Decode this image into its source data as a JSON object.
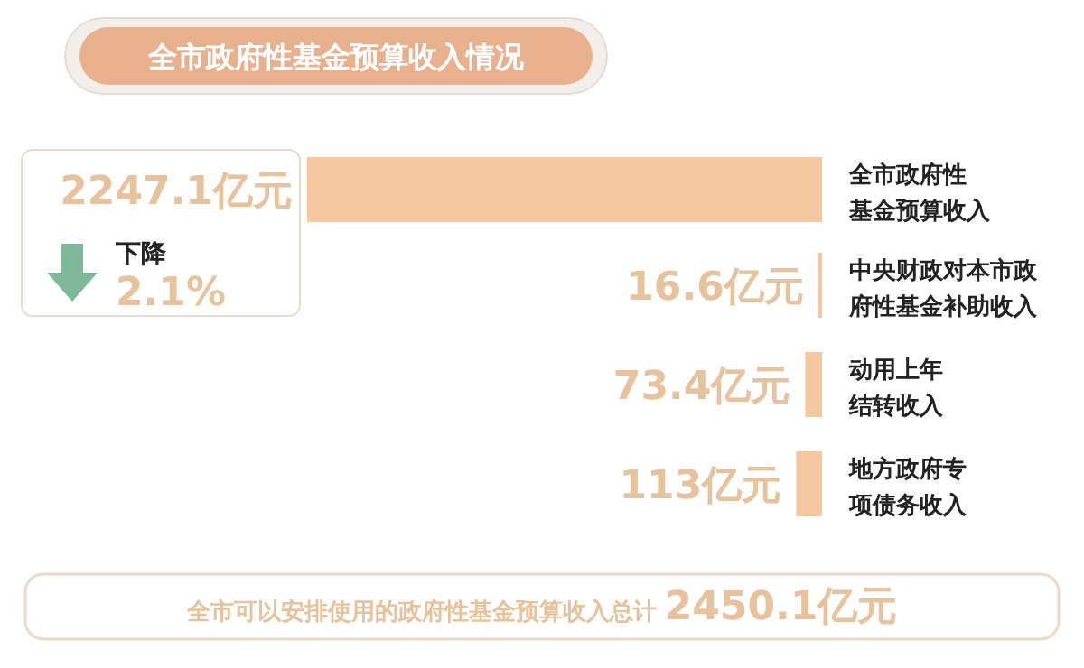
{
  "chart_data": {
    "type": "bar",
    "orientation": "horizontal",
    "title": "全市政府性基金预算收入情况",
    "categories": [
      "全市政府性基金预算收入",
      "中央财政对本市政府性基金补助收入",
      "动用上年结转收入",
      "地方政府专项债务收入"
    ],
    "values": [
      2247.1,
      16.6,
      73.4,
      113
    ],
    "value_labels": [
      "2247.1亿元",
      "16.6亿元",
      "73.4亿元",
      "113亿元"
    ],
    "color": "#f6c89f",
    "annotations": [
      "下降 2.1%",
      "全市可以安排使用的政府性基金预算收入总计 2450.1亿元"
    ]
  }
}
